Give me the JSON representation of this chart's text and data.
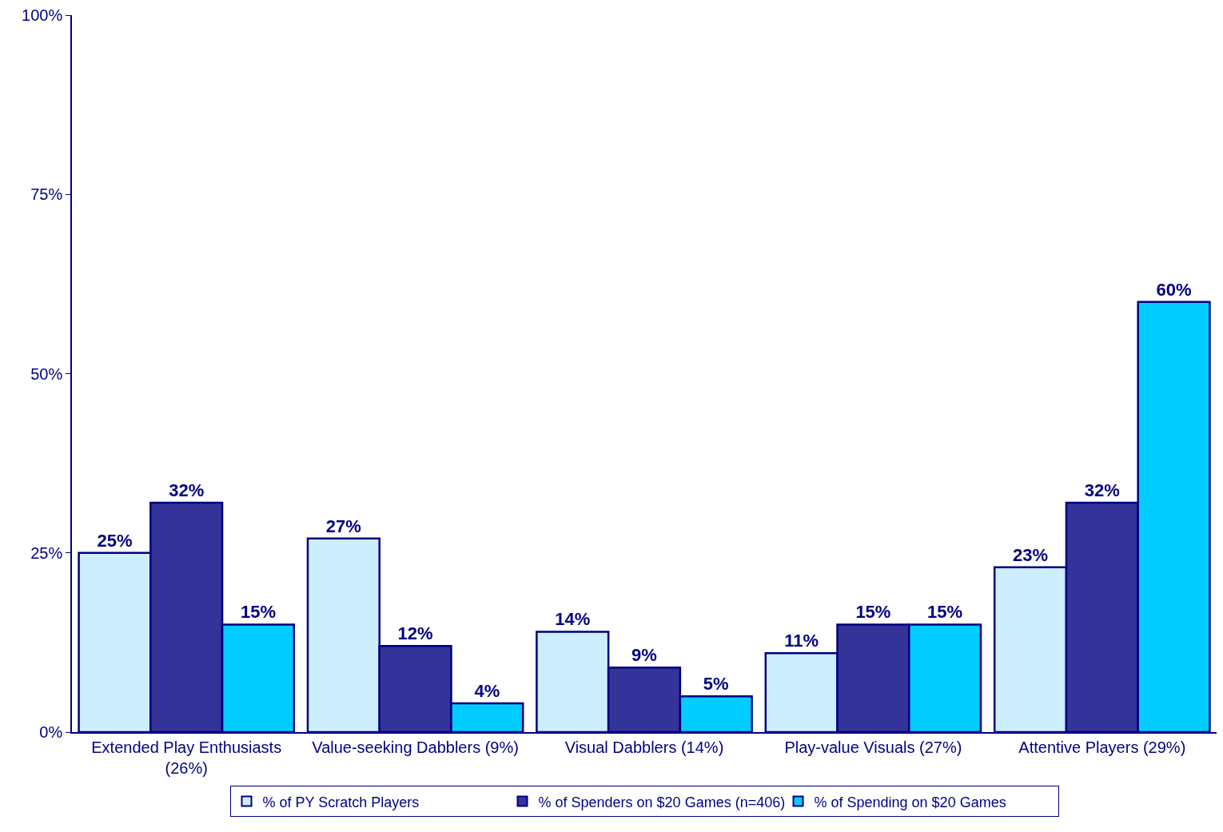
{
  "chart_data": {
    "type": "bar",
    "categories": [
      "Extended Play Enthusiasts (26%)",
      "Value-seeking Dabblers (9%)",
      "Visual Dabblers (14%)",
      "Play-value Visuals (27%)",
      "Attentive Players (29%)"
    ],
    "series": [
      {
        "name": "% of PY Scratch Players",
        "color": "#cceeff",
        "values": [
          25,
          27,
          14,
          11,
          23
        ],
        "value_labels": [
          "25%",
          "27%",
          "14%",
          "11%",
          "23%"
        ]
      },
      {
        "name": "% of Spenders on $20 Games (n=406)",
        "color": "#333399",
        "values": [
          32,
          12,
          9,
          15,
          32
        ],
        "value_labels": [
          "32%",
          "12%",
          "9%",
          "15%",
          "32%"
        ]
      },
      {
        "name": "% of Spending on $20 Games",
        "color": "#00ccff",
        "values": [
          15,
          4,
          5,
          15,
          60
        ],
        "value_labels": [
          "15%",
          "4%",
          "5%",
          "15%",
          "60%"
        ]
      }
    ],
    "ylim": [
      0,
      100
    ],
    "yticks": [
      {
        "value": 0,
        "label": "0%"
      },
      {
        "value": 25,
        "label": "25%"
      },
      {
        "value": 50,
        "label": "50%"
      },
      {
        "value": 75,
        "label": "75%"
      },
      {
        "value": 100,
        "label": "100%"
      }
    ],
    "legend": "bottom"
  }
}
